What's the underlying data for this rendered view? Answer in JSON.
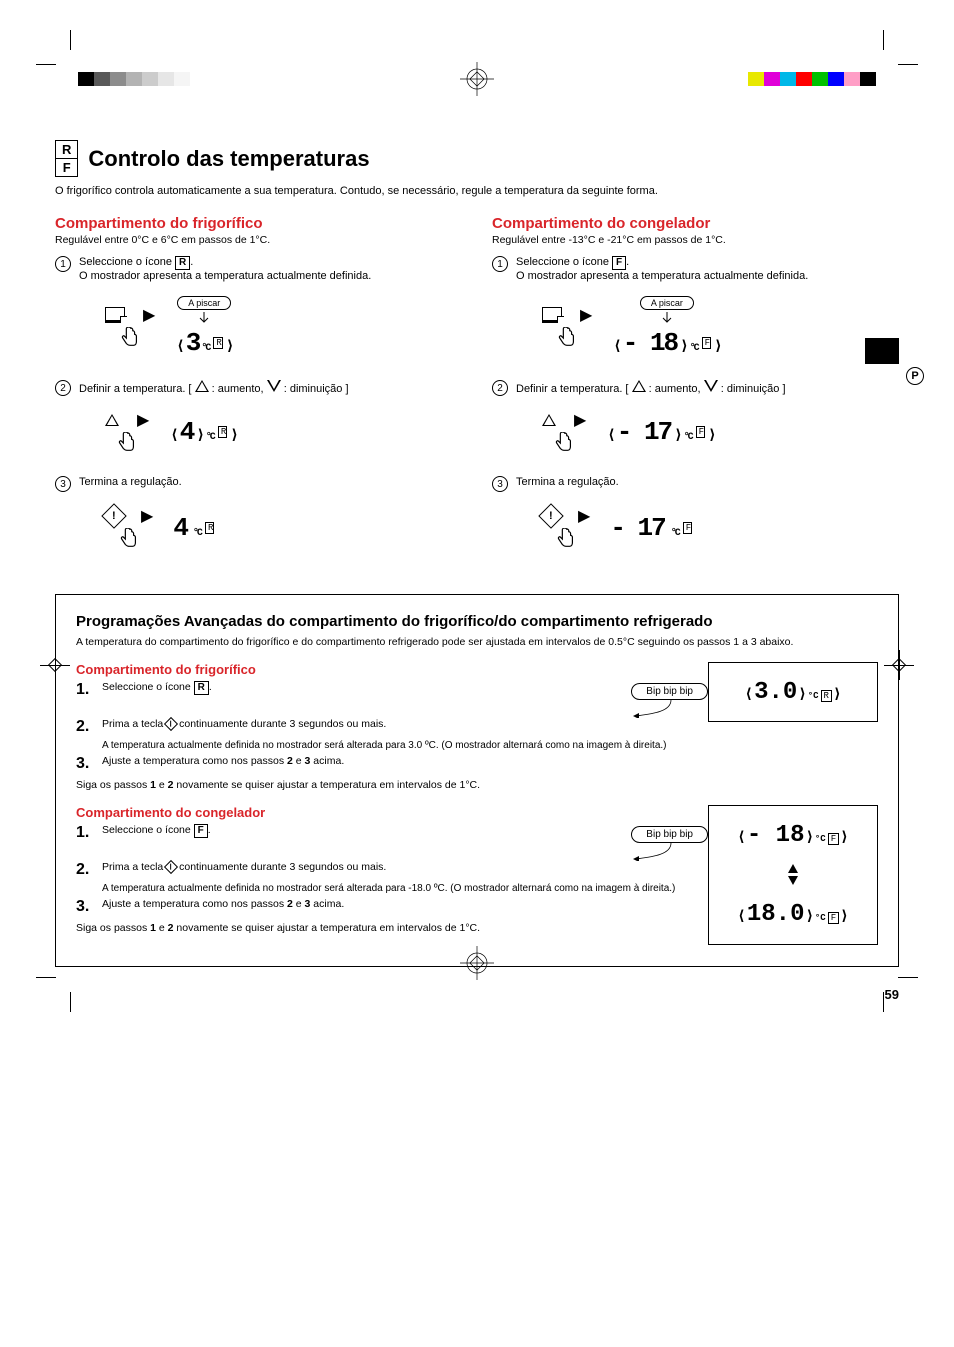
{
  "colors_left": [
    "#000000",
    "#595959",
    "#8c8c8c",
    "#b3b3b3",
    "#cccccc",
    "#e6e6e6",
    "#f5f5f5",
    "#ffffff"
  ],
  "colors_right": [
    "#e8e800",
    "#e000d8",
    "#00b8e8",
    "#ff0000",
    "#00c000",
    "#0000ff",
    "#ff9ec6",
    "#000000"
  ],
  "rf_icon": {
    "top": "R",
    "bottom": "F"
  },
  "main_title": "Controlo das temperaturas",
  "intro": "O frigorífico controla automaticamente a sua temperatura. Contudo, se necessário, regule a temperatura da seguinte forma.",
  "fridge": {
    "title": "Compartimento do frigorífico",
    "range": "Regulável entre 0°C e 6°C em passos de 1°C.",
    "step1_a": "Seleccione o ícone ",
    "step1_letter": "R",
    "step1_b": ".",
    "step1_note": "O mostrador apresenta a temperatura actualmente definida.",
    "pisca": "A piscar",
    "display1": "3",
    "display1_unit": "R",
    "step2": "Definir a temperatura. [ △ : aumento, ▽ : diminuição ]",
    "display2": "4",
    "step3": "Termina a regulação.",
    "display3": "4",
    "display3_unit": "R"
  },
  "freezer": {
    "title": "Compartimento do congelador",
    "range": "Regulável entre -13°C e -21°C em passos de 1°C.",
    "step1_a": "Seleccione o ícone ",
    "step1_letter": "F",
    "step1_b": ".",
    "step1_note": "O mostrador apresenta a temperatura actualmente definida.",
    "pisca": "A piscar",
    "display1": "- 18",
    "display1_unit": "F",
    "step2": "Definir a temperatura. [ △ : aumento, ▽ : diminuição ]",
    "display2": "- 17",
    "step3": "Termina a regulação.",
    "display3": "- 17",
    "display3_unit": "F"
  },
  "advanced": {
    "title": "Programações Avançadas do compartimento do frigorífico/do compartimento refrigerado",
    "desc": "A temperatura do compartimento do frigorífico e do compartimento refrigerado pode ser ajustada em intervalos de 0.5°C seguindo os passos 1 a 3 abaixo.",
    "fridge": {
      "title": "Compartimento do frigorífico",
      "bip": "Bip bip bip",
      "s1": "Seleccione o ícone ",
      "s1_letter": "R",
      "s1_end": ".",
      "s2": "Prima a tecla ◈ continuamente durante 3 segundos ou mais.",
      "s2_note": "A temperatura actualmente definida no mostrador será alterada para 3.0 ºC. (O mostrador alternará como na imagem à direita.)",
      "s3_a": "Ajuste a temperatura como nos passos ",
      "s3_b": " e ",
      "s3_c": " acima.",
      "s3_n1": "2",
      "s3_n2": "3",
      "follow": "Siga os passos 1 e 2 novamente se quiser ajustar a temperatura em intervalos de 1°C.",
      "display": "3.0",
      "display_unit": "R"
    },
    "freezer": {
      "title": "Compartimento do congelador",
      "bip": "Bip bip bip",
      "s1": "Seleccione o ícone ",
      "s1_letter": "F",
      "s1_end": ".",
      "s2": "Prima a tecla ◈ continuamente durante 3 segundos ou mais.",
      "s2_note": "A temperatura actualmente definida no mostrador será alterada para -18.0 ºC. (O mostrador alternará como na imagem à direita.)",
      "s3_a": "Ajuste a temperatura como nos passos ",
      "s3_b": " e ",
      "s3_c": " acima.",
      "s3_n1": "2",
      "s3_n2": "3",
      "follow": "Siga os passos 1 e 2 novamente se quiser ajustar a temperatura em intervalos de 1°C.",
      "display1": "- 18",
      "display2": "18.0",
      "display_unit": "F"
    }
  },
  "side_label": "P",
  "page_num": "59"
}
